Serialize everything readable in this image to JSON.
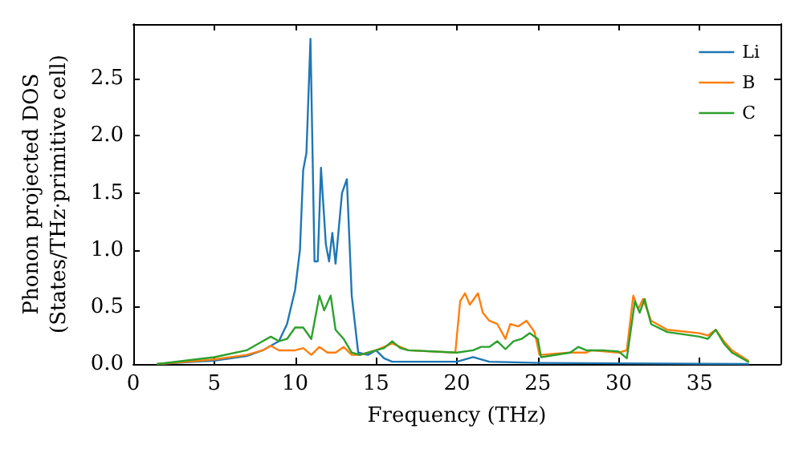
{
  "chart_data": {
    "type": "line",
    "xlabel": "Frequency (THz)",
    "ylabel": "Phonon projected DOS\n(States/THz·primitive cell)",
    "xlim": [
      0,
      40
    ],
    "xticks": [
      0,
      5,
      10,
      15,
      20,
      25,
      30,
      35
    ],
    "ylim": [
      0,
      2.98
    ],
    "yticks": [
      {
        "value": 0,
        "label": "0.0"
      },
      {
        "value": 0.5,
        "label": "0.5"
      },
      {
        "value": 1,
        "label": "1.0"
      },
      {
        "value": 1.5,
        "label": "1.5"
      },
      {
        "value": 2,
        "label": "2.0"
      },
      {
        "value": 2.5,
        "label": "2.5"
      }
    ],
    "grid": false,
    "legend": "top right",
    "marker": "none",
    "line_style": "solid",
    "series": [
      {
        "name": "Li",
        "color": "#1f77b4",
        "x": [
          1.5,
          5,
          7,
          8,
          9,
          9.5,
          10,
          10.3,
          10.5,
          10.7,
          10.95,
          11.2,
          11.4,
          11.6,
          11.9,
          12.1,
          12.3,
          12.5,
          12.9,
          13.2,
          13.5,
          13.9,
          14.5,
          15,
          15.5,
          16,
          20,
          21,
          22,
          25,
          38
        ],
        "values": [
          0,
          0.03,
          0.07,
          0.12,
          0.2,
          0.35,
          0.65,
          1.0,
          1.7,
          1.85,
          2.85,
          0.9,
          0.9,
          1.72,
          1.05,
          0.9,
          1.15,
          0.88,
          1.5,
          1.62,
          0.6,
          0.1,
          0.08,
          0.12,
          0.05,
          0.02,
          0.02,
          0.06,
          0.02,
          0.01,
          0
        ]
      },
      {
        "name": "B",
        "color": "#ff7f0e",
        "x": [
          1.5,
          5,
          7,
          8,
          8.5,
          9,
          10,
          10.5,
          11,
          11.5,
          12,
          12.5,
          13,
          13.5,
          14,
          15,
          16,
          17,
          19.9,
          20.2,
          20.5,
          20.8,
          21.3,
          21.6,
          22,
          22.5,
          23,
          23.3,
          23.8,
          24.3,
          24.8,
          25.1,
          27,
          28,
          28.3,
          30,
          30.5,
          30.9,
          31.2,
          31.5,
          32,
          33,
          35,
          35.5,
          36,
          36.5,
          37,
          38
        ],
        "values": [
          0,
          0.04,
          0.08,
          0.12,
          0.16,
          0.12,
          0.12,
          0.14,
          0.08,
          0.15,
          0.1,
          0.1,
          0.15,
          0.08,
          0.08,
          0.12,
          0.18,
          0.12,
          0.1,
          0.55,
          0.62,
          0.52,
          0.62,
          0.45,
          0.38,
          0.35,
          0.22,
          0.35,
          0.33,
          0.38,
          0.28,
          0.08,
          0.1,
          0.1,
          0.12,
          0.1,
          0.12,
          0.6,
          0.48,
          0.57,
          0.38,
          0.3,
          0.27,
          0.25,
          0.3,
          0.2,
          0.12,
          0.03
        ]
      },
      {
        "name": "C",
        "color": "#2ca02c",
        "x": [
          1.5,
          5,
          7,
          8,
          8.5,
          9,
          9.5,
          10,
          10.5,
          11,
          11.5,
          11.8,
          12.2,
          12.5,
          13,
          13.5,
          14,
          15,
          15.5,
          16,
          16.5,
          17,
          20,
          21,
          21.5,
          22,
          22.5,
          23,
          23.5,
          24,
          24.5,
          25,
          25.2,
          27,
          27.5,
          28,
          29,
          30,
          30.5,
          31,
          31.3,
          31.6,
          32,
          33,
          35,
          35.5,
          36,
          36.5,
          37,
          38
        ],
        "values": [
          0,
          0.06,
          0.12,
          0.2,
          0.24,
          0.2,
          0.22,
          0.32,
          0.32,
          0.22,
          0.6,
          0.47,
          0.6,
          0.3,
          0.22,
          0.1,
          0.08,
          0.12,
          0.14,
          0.2,
          0.14,
          0.12,
          0.1,
          0.12,
          0.15,
          0.15,
          0.2,
          0.13,
          0.2,
          0.22,
          0.27,
          0.22,
          0.06,
          0.1,
          0.15,
          0.12,
          0.12,
          0.11,
          0.05,
          0.55,
          0.45,
          0.57,
          0.35,
          0.28,
          0.24,
          0.22,
          0.3,
          0.18,
          0.1,
          0.02
        ]
      }
    ]
  }
}
